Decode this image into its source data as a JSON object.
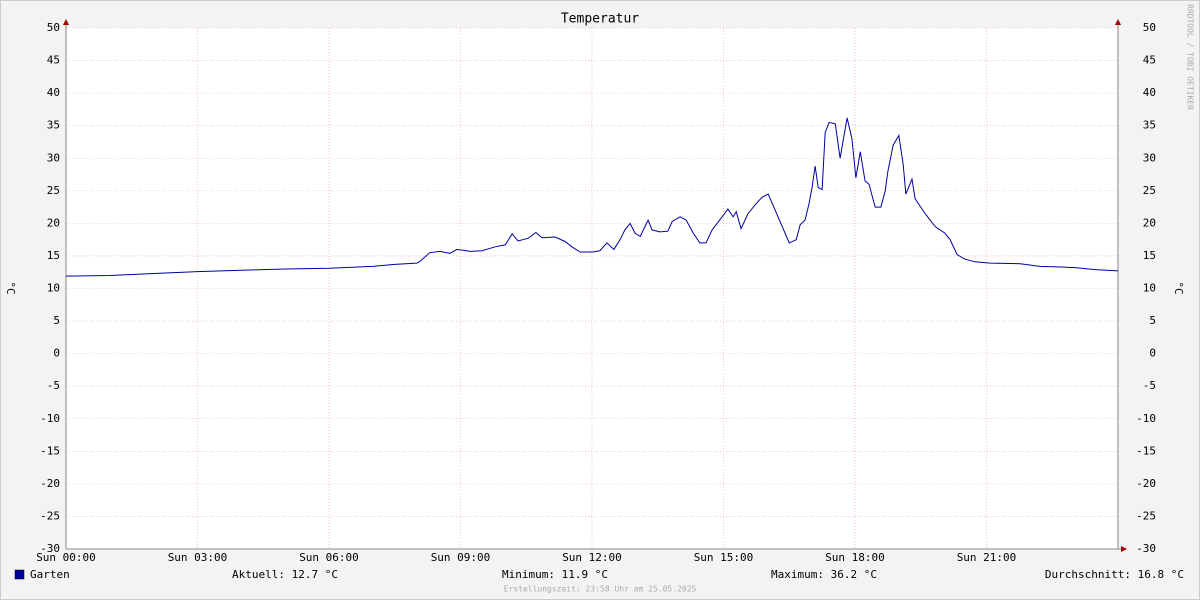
{
  "chart_data": {
    "type": "line",
    "title": "Temperatur",
    "ylabel": "°C",
    "y2label": "°C",
    "watermark": "RRDTOOL / TOBI OETIKER",
    "x": [
      0,
      1,
      2,
      3,
      4,
      5,
      6,
      7,
      7.5,
      8.01,
      8.08,
      8.3,
      8.53,
      8.76,
      8.92,
      9.22,
      9.49,
      9.79,
      10.02,
      10.18,
      10.31,
      10.54,
      10.72,
      10.86,
      11.16,
      11.39,
      11.54,
      11.73,
      12.02,
      12.18,
      12.34,
      12.5,
      12.64,
      12.75,
      12.87,
      12.98,
      13.1,
      13.28,
      13.37,
      13.55,
      13.73,
      13.83,
      14.01,
      14.15,
      14.31,
      14.46,
      14.6,
      14.74,
      14.97,
      15.1,
      15.22,
      15.29,
      15.4,
      15.56,
      15.74,
      15.88,
      16.02,
      16.18,
      16.34,
      16.5,
      16.66,
      16.75,
      16.86,
      16.95,
      17.02,
      17.09,
      17.16,
      17.25,
      17.32,
      17.41,
      17.55,
      17.66,
      17.82,
      17.93,
      18.02,
      18.12,
      18.23,
      18.32,
      18.46,
      18.59,
      18.69,
      18.75,
      18.87,
      19.0,
      19.1,
      19.16,
      19.3,
      19.37,
      19.6,
      19.83,
      20.05,
      20.17,
      20.33,
      20.51,
      20.74,
      21.08,
      21.77,
      22.22,
      22.68,
      23.02,
      23.48,
      24
    ],
    "series": [
      {
        "name": "Garten",
        "color": "#0000a0",
        "values": [
          11.9,
          12.0,
          12.3,
          12.6,
          12.8,
          13.0,
          13.1,
          13.4,
          13.7,
          13.9,
          14.2,
          15.5,
          15.7,
          15.4,
          16.0,
          15.7,
          15.8,
          16.4,
          16.7,
          18.4,
          17.3,
          17.7,
          18.6,
          17.8,
          17.9,
          17.2,
          16.4,
          15.6,
          15.6,
          15.8,
          17.0,
          16.0,
          17.5,
          19.0,
          20.0,
          18.5,
          18.0,
          20.5,
          19.0,
          18.7,
          18.8,
          20.3,
          21.0,
          20.5,
          18.5,
          17.0,
          17.0,
          19.0,
          21.0,
          22.2,
          21.0,
          21.8,
          19.2,
          21.5,
          23.0,
          24.0,
          24.5,
          22.0,
          19.5,
          17.0,
          17.5,
          19.8,
          20.5,
          23.0,
          25.5,
          28.8,
          25.5,
          25.2,
          34.0,
          35.5,
          35.3,
          30.0,
          36.2,
          33.0,
          27.0,
          31.0,
          26.5,
          26.0,
          22.5,
          22.5,
          25.0,
          28.0,
          32.0,
          33.5,
          29.0,
          24.5,
          26.8,
          23.8,
          21.5,
          19.5,
          18.5,
          17.5,
          15.2,
          14.5,
          14.1,
          13.9,
          13.8,
          13.4,
          13.3,
          13.2,
          12.9,
          12.7
        ]
      }
    ],
    "xlim": [
      0,
      24
    ],
    "xticks": [
      {
        "value": 0,
        "label": "Sun 00:00"
      },
      {
        "value": 3,
        "label": "Sun 03:00"
      },
      {
        "value": 6,
        "label": "Sun 06:00"
      },
      {
        "value": 9,
        "label": "Sun 09:00"
      },
      {
        "value": 12,
        "label": "Sun 12:00"
      },
      {
        "value": 15,
        "label": "Sun 15:00"
      },
      {
        "value": 18,
        "label": "Sun 18:00"
      },
      {
        "value": 21,
        "label": "Sun 21:00"
      }
    ],
    "ylim": [
      -30,
      50
    ],
    "yticks": [
      -30,
      -25,
      -20,
      -15,
      -10,
      -5,
      0,
      5,
      10,
      15,
      20,
      25,
      30,
      35,
      40,
      45,
      50
    ],
    "grid": true,
    "stats": [
      "Aktuell: 12.7 °C",
      "Minimum: 11.9 °C",
      "Maximum: 36.2 °C",
      "Durchschnitt: 16.8 °C"
    ],
    "footer": "Erstellungszeit: 23:58 Uhr am 25.05.2025"
  }
}
